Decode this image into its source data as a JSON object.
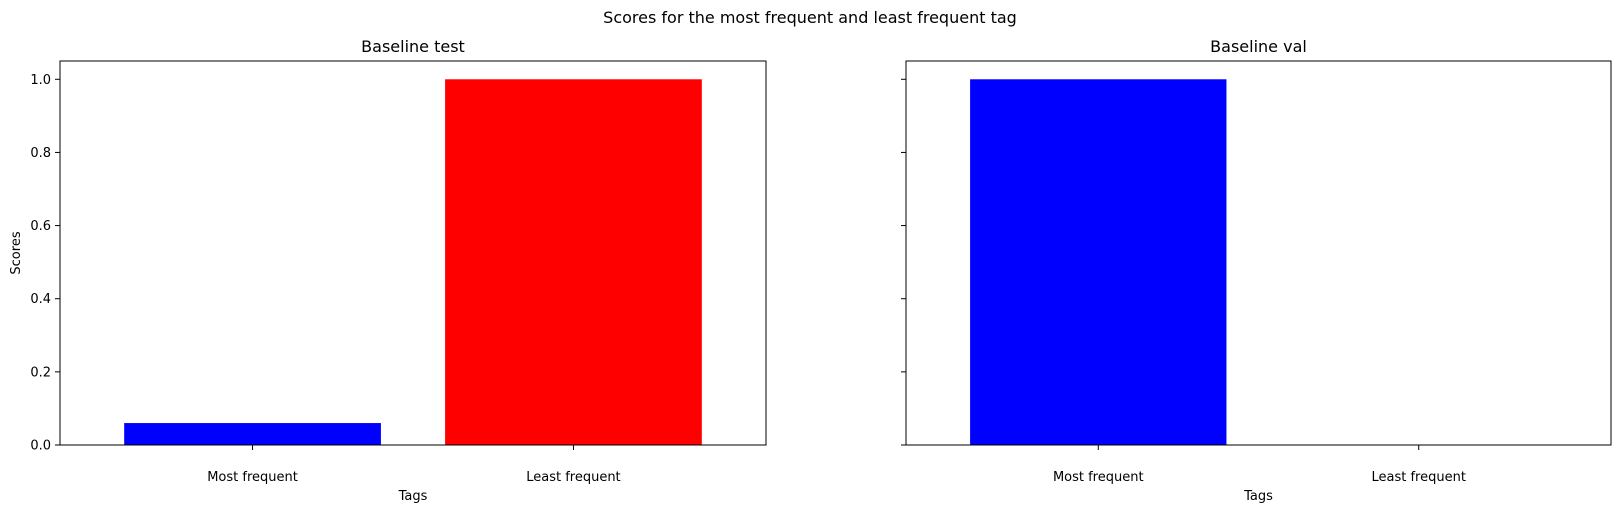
{
  "figure": {
    "suptitle": "Scores for the most frequent and least frequent tag"
  },
  "chart_data": [
    {
      "type": "bar",
      "title": "Baseline test",
      "xlabel": "Tags",
      "ylabel": "Scores",
      "categories": [
        "Most frequent",
        "Least frequent"
      ],
      "values": [
        0.06,
        1.0
      ],
      "colors": [
        "#0000ff",
        "#ff0000"
      ],
      "ylim": [
        0,
        1.05
      ],
      "yticks": [
        0.0,
        0.2,
        0.4,
        0.6,
        0.8,
        1.0
      ],
      "ytick_labels": [
        "0.0",
        "0.2",
        "0.4",
        "0.6",
        "0.8",
        "1.0"
      ],
      "grid": false
    },
    {
      "type": "bar",
      "title": "Baseline val",
      "xlabel": "Tags",
      "ylabel": "",
      "categories": [
        "Most frequent",
        "Least frequent"
      ],
      "values": [
        1.0,
        0.0
      ],
      "colors": [
        "#0000ff",
        "#ff0000"
      ],
      "ylim": [
        0,
        1.05
      ],
      "yticks": [
        0.0,
        0.2,
        0.4,
        0.6,
        0.8,
        1.0
      ],
      "ytick_labels": [
        "",
        "",
        "",
        "",
        "",
        ""
      ],
      "grid": false
    }
  ]
}
